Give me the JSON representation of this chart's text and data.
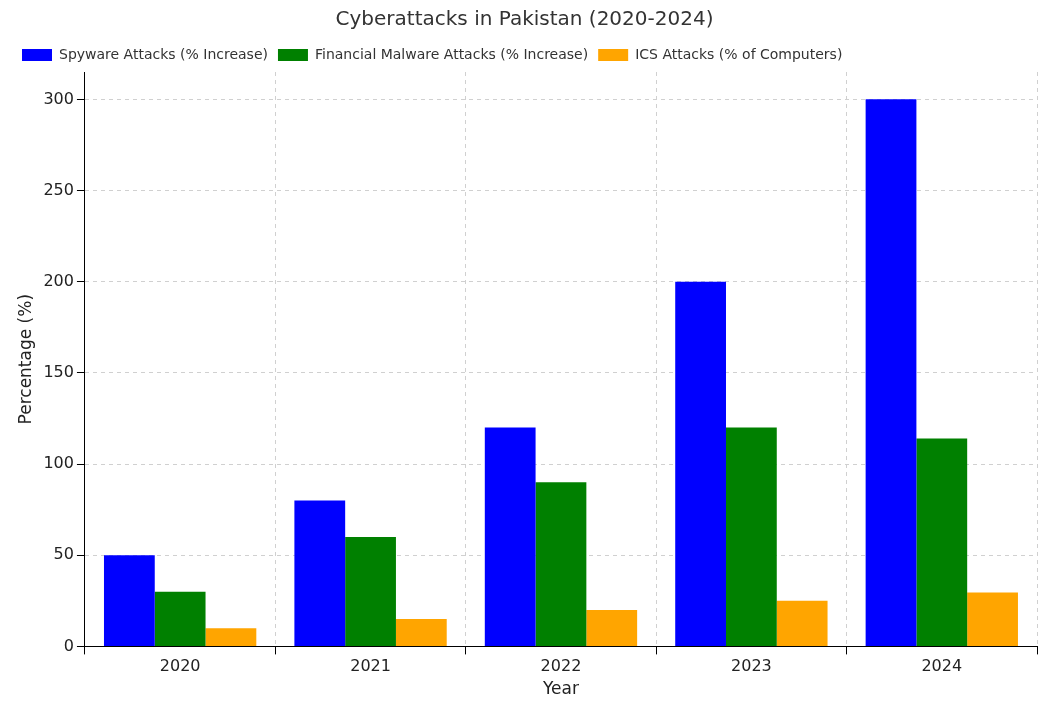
{
  "chart_data": {
    "type": "bar",
    "title": "Cyberattacks in Pakistan (2020-2024)",
    "xlabel": "Year",
    "ylabel": "Percentage (%)",
    "categories": [
      "2020",
      "2021",
      "2022",
      "2023",
      "2024"
    ],
    "series": [
      {
        "name": "Spyware Attacks (% Increase)",
        "color": "#0000ff",
        "values": [
          50,
          80,
          120,
          200,
          300
        ]
      },
      {
        "name": "Financial Malware Attacks (% Increase)",
        "color": "#008000",
        "values": [
          30,
          60,
          90,
          120,
          114
        ]
      },
      {
        "name": "ICS Attacks (% of Computers)",
        "color": "#ffa500",
        "values": [
          10,
          15,
          20,
          25,
          29.5
        ]
      }
    ],
    "ylim": [
      0,
      315
    ],
    "yticks": [
      0,
      50,
      100,
      150,
      200,
      250,
      300
    ],
    "grid": true,
    "legend": "top left"
  }
}
